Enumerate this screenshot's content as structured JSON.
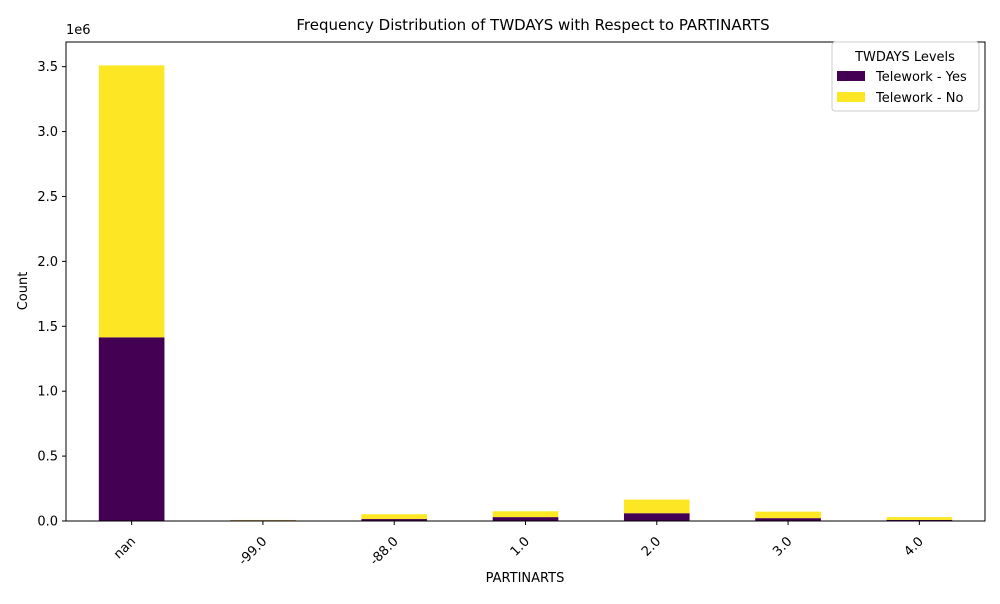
{
  "chart_data": {
    "type": "bar",
    "stacked": true,
    "title": "Frequency Distribution of TWDAYS with Respect to PARTINARTS",
    "xlabel": "PARTINARTS",
    "ylabel": "Count",
    "y_offset_label": "1e6",
    "ylim": [
      0,
      3690000
    ],
    "yticks": [
      "0.0",
      "0.5",
      "1.0",
      "1.5",
      "2.0",
      "2.5",
      "3.0",
      "3.5"
    ],
    "ytick_values": [
      0,
      500000,
      1000000,
      1500000,
      2000000,
      2500000,
      3000000,
      3500000
    ],
    "categories": [
      "nan",
      "-99.0",
      "-88.0",
      "1.0",
      "2.0",
      "3.0",
      "4.0"
    ],
    "series": [
      {
        "name": "Telework - Yes",
        "color": "#440154",
        "values": [
          1415000,
          6000,
          15000,
          30000,
          60000,
          22000,
          8000
        ]
      },
      {
        "name": "Telework - No",
        "color": "#fde725",
        "values": [
          2095000,
          2000,
          37000,
          45000,
          105000,
          50000,
          22000
        ]
      }
    ],
    "legend": {
      "title": "TWDAYS Levels",
      "placement": "top-right"
    },
    "grid": false
  }
}
